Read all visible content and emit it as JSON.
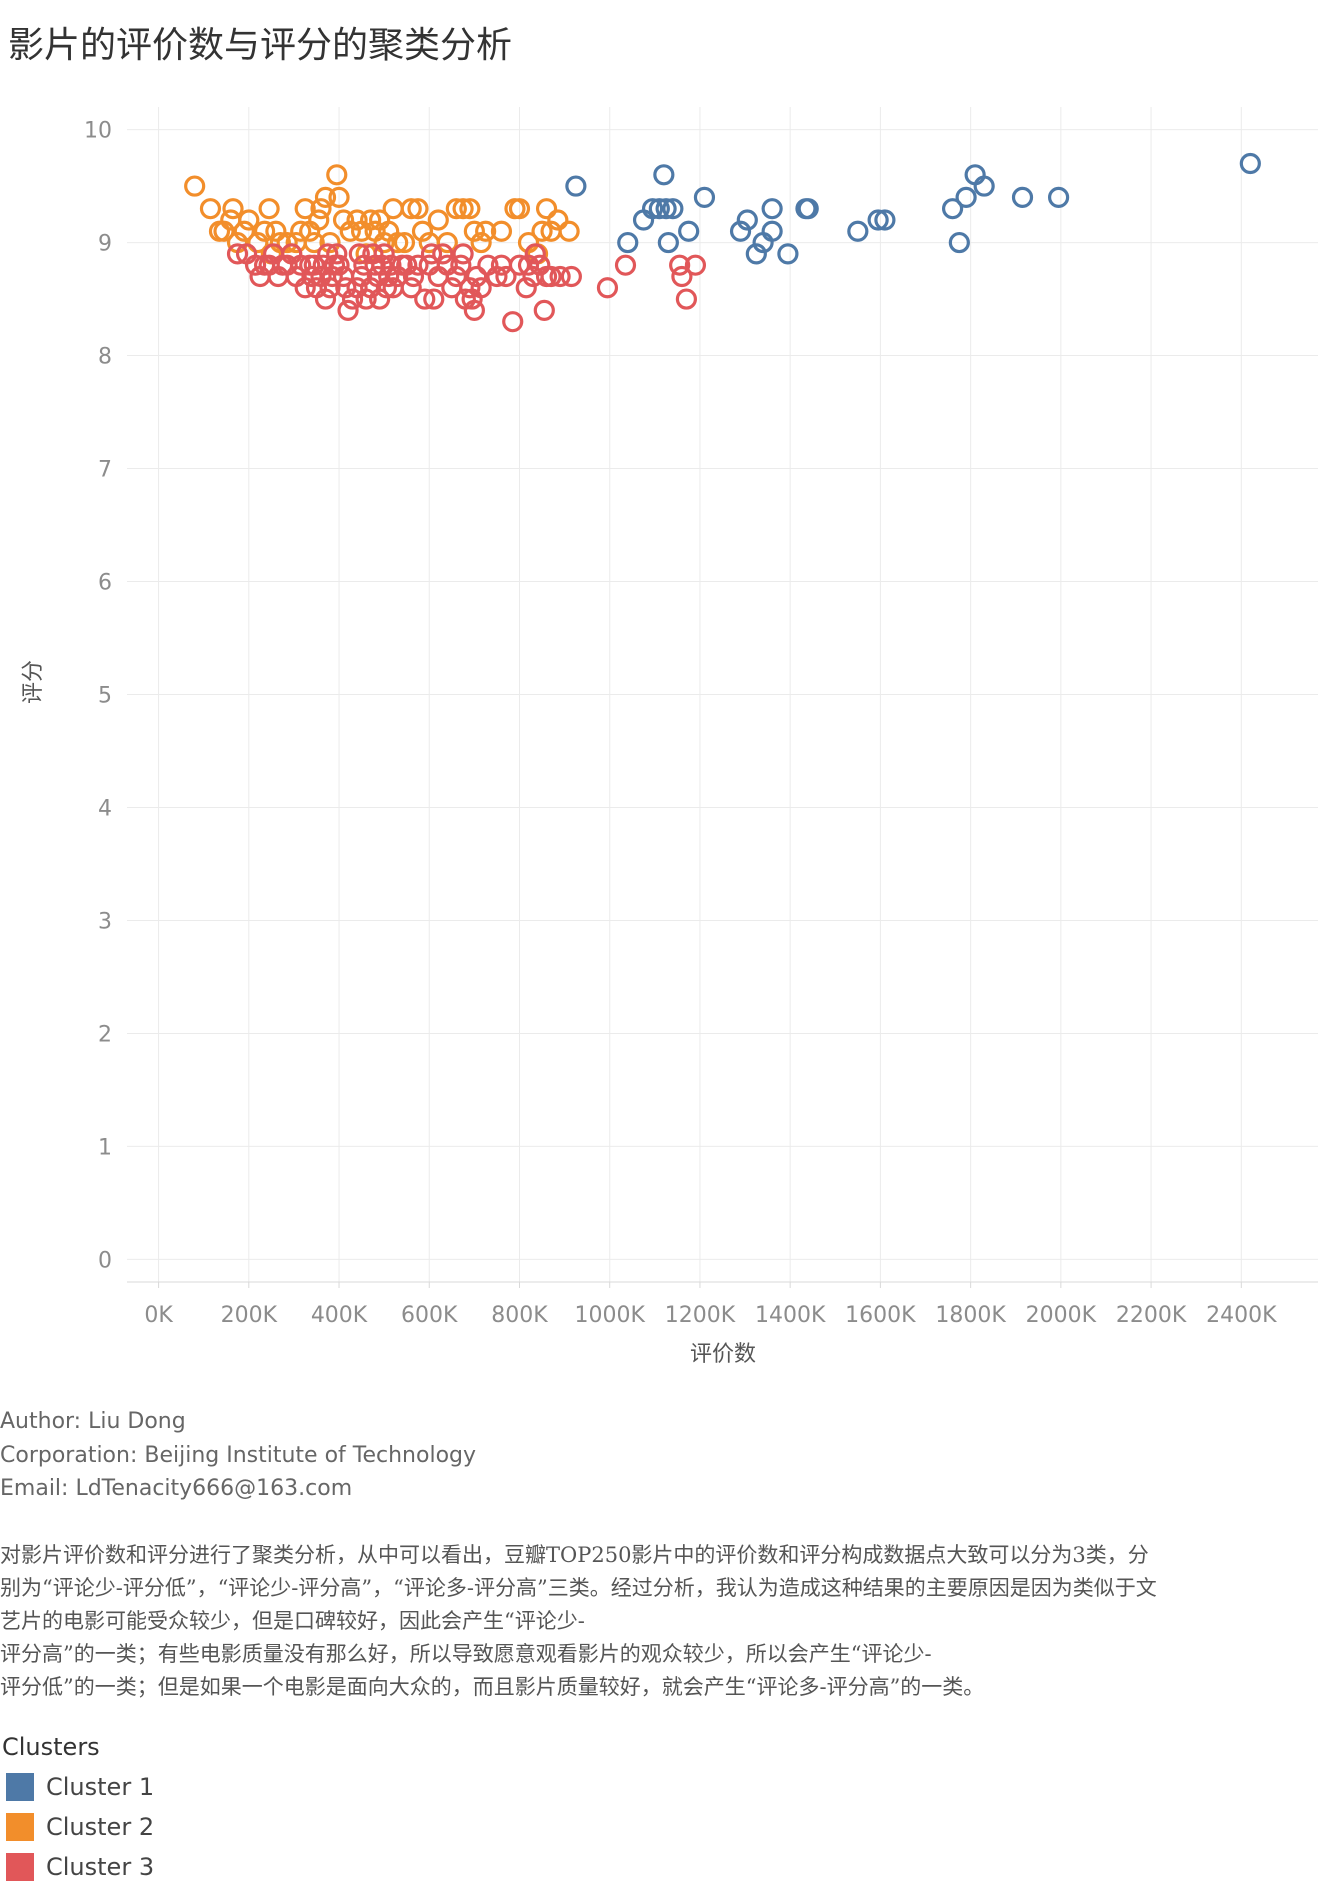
{
  "title": "影片的评价数与评分的聚类分析",
  "info": {
    "author": "Author: Liu Dong",
    "corporation": "Corporation: Beijing Institute of Technology",
    "email": "Email: LdTenacity666@163.com"
  },
  "description_lines": [
    "对影片评价数和评分进行了聚类分析，从中可以看出，豆瓣TOP250影片中的评价数和评分构成数据点大致可以分为3类，分",
    "别为“评论少-评分低”，“评论少-评分高”，“评论多-评分高”三类。经过分析，我认为造成这种结果的主要原因是因为类似于文",
    "艺片的电影可能受众较少，但是口碑较好，因此会产生“评论少-",
    "评分高”的一类；有些电影质量没有那么好，所以导致愿意观看影片的观众较少，所以会产生“评论少-",
    "评分低”的一类；但是如果一个电影是面向大众的，而且影片质量较好，就会产生“评论多-评分高”的一类。"
  ],
  "legend": {
    "title": "Clusters",
    "items": [
      {
        "label": "Cluster 1",
        "color": "#4e79a7"
      },
      {
        "label": "Cluster 2",
        "color": "#f28e2b"
      },
      {
        "label": "Cluster 3",
        "color": "#e15759"
      }
    ]
  },
  "chart_data": {
    "type": "scatter",
    "title": "影片的评价数与评分的聚类分析",
    "xlabel": "评价数",
    "ylabel": "评分",
    "xlim": [
      -70000,
      2570000
    ],
    "ylim": [
      -0.2,
      10.2
    ],
    "x_ticks": [
      0,
      200000,
      400000,
      600000,
      800000,
      1000000,
      1200000,
      1400000,
      1600000,
      1800000,
      2000000,
      2200000,
      2400000
    ],
    "x_tick_labels": [
      "0K",
      "200K",
      "400K",
      "600K",
      "800K",
      "1000K",
      "1200K",
      "1400K",
      "1600K",
      "1800K",
      "2000K",
      "2200K",
      "2400K"
    ],
    "y_ticks": [
      0,
      1,
      2,
      3,
      4,
      5,
      6,
      7,
      8,
      9,
      10
    ],
    "y_tick_labels": [
      "0",
      "1",
      "2",
      "3",
      "4",
      "5",
      "6",
      "7",
      "8",
      "9",
      "10"
    ],
    "grid": true,
    "marker": "hollow-circle",
    "series": [
      {
        "name": "Cluster 1",
        "color": "#4e79a7",
        "points": [
          [
            925000,
            9.5
          ],
          [
            1120000,
            9.6
          ],
          [
            1040000,
            9.0
          ],
          [
            1075000,
            9.2
          ],
          [
            1095000,
            9.3
          ],
          [
            1110000,
            9.3
          ],
          [
            1125000,
            9.3
          ],
          [
            1140000,
            9.3
          ],
          [
            1130000,
            9.0
          ],
          [
            1175000,
            9.1
          ],
          [
            1210000,
            9.4
          ],
          [
            1290000,
            9.1
          ],
          [
            1305000,
            9.2
          ],
          [
            1325000,
            8.9
          ],
          [
            1340000,
            9.0
          ],
          [
            1360000,
            9.3
          ],
          [
            1360000,
            9.1
          ],
          [
            1395000,
            8.9
          ],
          [
            1435000,
            9.3
          ],
          [
            1440000,
            9.3
          ],
          [
            1550000,
            9.1
          ],
          [
            1595000,
            9.2
          ],
          [
            1610000,
            9.2
          ],
          [
            1760000,
            9.3
          ],
          [
            1775000,
            9.0
          ],
          [
            1790000,
            9.4
          ],
          [
            1810000,
            9.6
          ],
          [
            1830000,
            9.5
          ],
          [
            1915000,
            9.4
          ],
          [
            1995000,
            9.4
          ],
          [
            2420000,
            9.7
          ]
        ]
      },
      {
        "name": "Cluster 2",
        "color": "#f28e2b",
        "points": [
          [
            80000,
            9.5
          ],
          [
            115000,
            9.3
          ],
          [
            135000,
            9.1
          ],
          [
            145000,
            9.1
          ],
          [
            160000,
            9.2
          ],
          [
            165000,
            9.3
          ],
          [
            175000,
            9.0
          ],
          [
            190000,
            9.1
          ],
          [
            200000,
            9.2
          ],
          [
            220000,
            9.0
          ],
          [
            235000,
            9.1
          ],
          [
            245000,
            9.3
          ],
          [
            250000,
            8.9
          ],
          [
            260000,
            9.1
          ],
          [
            270000,
            9.0
          ],
          [
            285000,
            9.0
          ],
          [
            295000,
            8.9
          ],
          [
            305000,
            9.0
          ],
          [
            315000,
            9.1
          ],
          [
            325000,
            9.3
          ],
          [
            335000,
            9.1
          ],
          [
            345000,
            9.0
          ],
          [
            355000,
            9.2
          ],
          [
            360000,
            9.3
          ],
          [
            370000,
            9.4
          ],
          [
            380000,
            9.0
          ],
          [
            395000,
            9.6
          ],
          [
            400000,
            9.4
          ],
          [
            410000,
            9.2
          ],
          [
            425000,
            9.1
          ],
          [
            440000,
            9.2
          ],
          [
            450000,
            9.1
          ],
          [
            460000,
            8.9
          ],
          [
            470000,
            9.2
          ],
          [
            480000,
            9.1
          ],
          [
            490000,
            9.2
          ],
          [
            500000,
            9.0
          ],
          [
            510000,
            9.1
          ],
          [
            520000,
            9.3
          ],
          [
            530000,
            9.0
          ],
          [
            545000,
            9.0
          ],
          [
            560000,
            9.3
          ],
          [
            575000,
            9.3
          ],
          [
            585000,
            9.1
          ],
          [
            600000,
            9.0
          ],
          [
            620000,
            9.2
          ],
          [
            640000,
            9.0
          ],
          [
            660000,
            9.3
          ],
          [
            675000,
            9.3
          ],
          [
            690000,
            9.3
          ],
          [
            700000,
            9.1
          ],
          [
            715000,
            9.0
          ],
          [
            725000,
            9.1
          ],
          [
            760000,
            9.1
          ],
          [
            790000,
            9.3
          ],
          [
            800000,
            9.3
          ],
          [
            820000,
            9.0
          ],
          [
            840000,
            8.9
          ],
          [
            850000,
            9.1
          ],
          [
            860000,
            9.3
          ],
          [
            870000,
            9.1
          ],
          [
            885000,
            9.2
          ],
          [
            910000,
            9.1
          ]
        ]
      },
      {
        "name": "Cluster 3",
        "color": "#e15759",
        "points": [
          [
            175000,
            8.9
          ],
          [
            195000,
            8.9
          ],
          [
            215000,
            8.8
          ],
          [
            225000,
            8.7
          ],
          [
            235000,
            8.8
          ],
          [
            245000,
            8.8
          ],
          [
            255000,
            8.9
          ],
          [
            265000,
            8.7
          ],
          [
            275000,
            8.8
          ],
          [
            285000,
            8.8
          ],
          [
            295000,
            8.9
          ],
          [
            305000,
            8.7
          ],
          [
            315000,
            8.8
          ],
          [
            325000,
            8.6
          ],
          [
            335000,
            8.8
          ],
          [
            340000,
            8.7
          ],
          [
            345000,
            8.8
          ],
          [
            350000,
            8.6
          ],
          [
            360000,
            8.7
          ],
          [
            365000,
            8.8
          ],
          [
            370000,
            8.5
          ],
          [
            375000,
            8.9
          ],
          [
            380000,
            8.6
          ],
          [
            385000,
            8.7
          ],
          [
            390000,
            8.8
          ],
          [
            395000,
            8.9
          ],
          [
            400000,
            8.8
          ],
          [
            410000,
            8.7
          ],
          [
            415000,
            8.6
          ],
          [
            420000,
            8.4
          ],
          [
            430000,
            8.5
          ],
          [
            440000,
            8.6
          ],
          [
            445000,
            8.9
          ],
          [
            450000,
            8.7
          ],
          [
            455000,
            8.8
          ],
          [
            460000,
            8.5
          ],
          [
            470000,
            8.6
          ],
          [
            475000,
            8.9
          ],
          [
            480000,
            8.8
          ],
          [
            485000,
            8.7
          ],
          [
            490000,
            8.5
          ],
          [
            495000,
            8.8
          ],
          [
            500000,
            8.9
          ],
          [
            505000,
            8.6
          ],
          [
            510000,
            8.7
          ],
          [
            515000,
            8.8
          ],
          [
            520000,
            8.6
          ],
          [
            530000,
            8.7
          ],
          [
            540000,
            8.8
          ],
          [
            550000,
            8.8
          ],
          [
            560000,
            8.6
          ],
          [
            565000,
            8.7
          ],
          [
            575000,
            8.8
          ],
          [
            590000,
            8.5
          ],
          [
            600000,
            8.8
          ],
          [
            605000,
            8.9
          ],
          [
            610000,
            8.5
          ],
          [
            620000,
            8.7
          ],
          [
            630000,
            8.9
          ],
          [
            640000,
            8.8
          ],
          [
            650000,
            8.6
          ],
          [
            660000,
            8.7
          ],
          [
            670000,
            8.8
          ],
          [
            675000,
            8.9
          ],
          [
            680000,
            8.5
          ],
          [
            690000,
            8.6
          ],
          [
            695000,
            8.5
          ],
          [
            700000,
            8.4
          ],
          [
            705000,
            8.7
          ],
          [
            715000,
            8.6
          ],
          [
            730000,
            8.8
          ],
          [
            750000,
            8.7
          ],
          [
            760000,
            8.8
          ],
          [
            770000,
            8.7
          ],
          [
            785000,
            8.3
          ],
          [
            800000,
            8.8
          ],
          [
            815000,
            8.6
          ],
          [
            820000,
            8.8
          ],
          [
            830000,
            8.7
          ],
          [
            835000,
            8.9
          ],
          [
            845000,
            8.8
          ],
          [
            855000,
            8.4
          ],
          [
            860000,
            8.7
          ],
          [
            870000,
            8.7
          ],
          [
            890000,
            8.7
          ],
          [
            915000,
            8.7
          ],
          [
            995000,
            8.6
          ],
          [
            1035000,
            8.8
          ],
          [
            1155000,
            8.8
          ],
          [
            1160000,
            8.7
          ],
          [
            1170000,
            8.5
          ],
          [
            1190000,
            8.8
          ]
        ]
      }
    ]
  }
}
